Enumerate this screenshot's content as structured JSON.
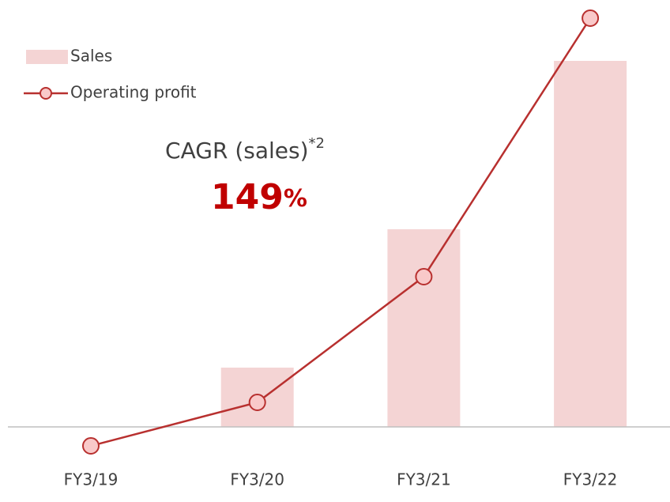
{
  "chart_data": {
    "type": "bar_line",
    "categories": [
      "FY3/19",
      "FY3/20",
      "FY3/21",
      "FY3/22"
    ],
    "series": [
      {
        "name": "Sales",
        "color": "#f4d4d4",
        "kind": "bar",
        "values": [
          null,
          75,
          250,
          463
        ]
      },
      {
        "name": "Operating profit",
        "color": "#b8302f",
        "kind": "line",
        "values": [
          -24,
          31,
          190,
          517
        ]
      }
    ],
    "ylim": [
      -95,
      540
    ],
    "annotation": {
      "label": "CAGR (sales)",
      "note": "*2",
      "value": "149",
      "unit": "%",
      "color": "#c00000"
    }
  }
}
